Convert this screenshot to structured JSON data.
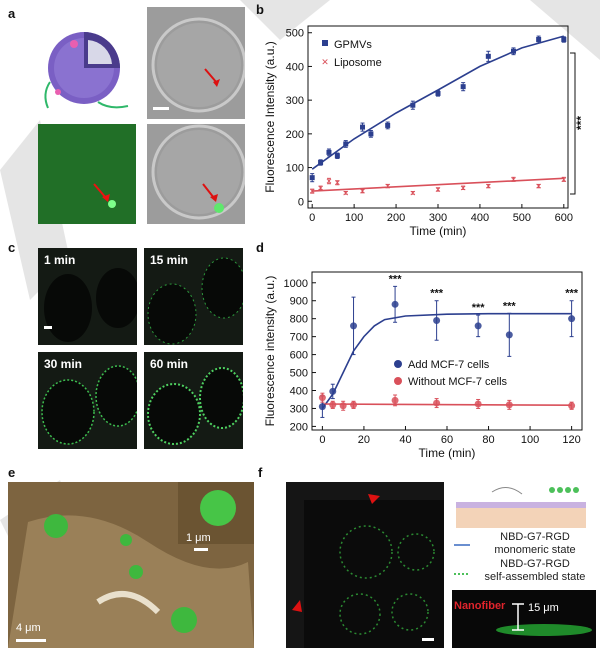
{
  "panels": {
    "a": {
      "letter": "a"
    },
    "b": {
      "letter": "b"
    },
    "c": {
      "letter": "c",
      "labels": [
        "1 min",
        "15 min",
        "30 min",
        "60 min"
      ]
    },
    "d": {
      "letter": "d"
    },
    "e": {
      "letter": "e",
      "scale_main": "4 μm",
      "scale_inset": "1 μm"
    },
    "f": {
      "letter": "f",
      "legend_monomeric": "NBD-G7-RGD\nmonomeric state",
      "legend_assembled": "NBD-G7-RGD\nself-assembled state",
      "nanofiber_label": "Nanofiber",
      "height_label": "15 μm"
    }
  },
  "chart_data": [
    {
      "id": "b",
      "type": "scatter",
      "xlabel": "Time (min)",
      "ylabel": "Fluorescence Intensity (a.u.)",
      "xlim": [
        -10,
        610
      ],
      "ylim": [
        -20,
        520
      ],
      "xticks": [
        0,
        100,
        200,
        300,
        400,
        500,
        600
      ],
      "yticks": [
        0,
        100,
        200,
        300,
        400,
        500
      ],
      "significance": "***",
      "legend_position": "top-left",
      "series": [
        {
          "name": "GPMVs",
          "color": "#2c3f8f",
          "marker": "square",
          "x": [
            0,
            20,
            40,
            60,
            80,
            120,
            140,
            180,
            240,
            300,
            360,
            420,
            480,
            540,
            600
          ],
          "y": [
            70,
            115,
            145,
            135,
            170,
            220,
            200,
            225,
            285,
            320,
            340,
            430,
            445,
            480,
            480
          ],
          "err": [
            12,
            8,
            10,
            8,
            10,
            12,
            10,
            10,
            12,
            8,
            12,
            15,
            10,
            10,
            8
          ]
        },
        {
          "name": "Liposome",
          "color": "#d9505a",
          "marker": "x",
          "x": [
            0,
            20,
            40,
            60,
            80,
            120,
            180,
            240,
            300,
            360,
            420,
            480,
            540,
            600
          ],
          "y": [
            30,
            40,
            60,
            55,
            25,
            30,
            45,
            25,
            35,
            40,
            45,
            65,
            45,
            65
          ],
          "err": [
            6,
            5,
            8,
            6,
            4,
            5,
            5,
            4,
            5,
            5,
            5,
            6,
            5,
            6
          ]
        }
      ],
      "fits": [
        {
          "color": "#2c3f8f",
          "points": [
            [
              0,
              95
            ],
            [
              100,
              185
            ],
            [
              200,
              262
            ],
            [
              300,
              330
            ],
            [
              400,
              400
            ],
            [
              500,
              455
            ],
            [
              600,
              490
            ]
          ]
        },
        {
          "color": "#d9505a",
          "points": [
            [
              0,
              30
            ],
            [
              600,
              68
            ]
          ]
        }
      ]
    },
    {
      "id": "d",
      "type": "scatter",
      "xlabel": "Time (min)",
      "ylabel": "Fluorescence intensity (a.u.)",
      "xlim": [
        -5,
        125
      ],
      "ylim": [
        180,
        1060
      ],
      "xticks": [
        0,
        20,
        40,
        60,
        80,
        100,
        120
      ],
      "yticks": [
        200,
        300,
        400,
        500,
        600,
        700,
        800,
        900,
        1000
      ],
      "significance": "***",
      "legend_position": "center-right",
      "series": [
        {
          "name": "Add MCF-7 cells",
          "color": "#2c3f8f",
          "x": [
            0,
            5,
            15,
            35,
            55,
            75,
            90,
            120
          ],
          "y": [
            310,
            395,
            760,
            880,
            790,
            760,
            710,
            800
          ],
          "err": [
            60,
            40,
            160,
            100,
            110,
            60,
            120,
            100
          ],
          "stars": [
            false,
            false,
            false,
            true,
            true,
            true,
            true,
            true
          ]
        },
        {
          "name": "Without  MCF-7 cells",
          "color": "#d9505a",
          "x": [
            0,
            5,
            10,
            15,
            35,
            55,
            75,
            90,
            120
          ],
          "y": [
            360,
            320,
            315,
            320,
            345,
            330,
            325,
            320,
            315
          ],
          "err": [
            25,
            20,
            25,
            20,
            30,
            25,
            25,
            25,
            20
          ]
        }
      ],
      "fits": [
        {
          "color": "#2c3f8f",
          "points": [
            [
              0,
              300
            ],
            [
              5,
              380
            ],
            [
              10,
              500
            ],
            [
              15,
              620
            ],
            [
              20,
              700
            ],
            [
              25,
              760
            ],
            [
              30,
              795
            ],
            [
              40,
              815
            ],
            [
              60,
              825
            ],
            [
              80,
              828
            ],
            [
              120,
              828
            ]
          ]
        },
        {
          "color": "#d9505a",
          "points": [
            [
              0,
              325
            ],
            [
              120,
              318
            ]
          ]
        }
      ]
    }
  ]
}
